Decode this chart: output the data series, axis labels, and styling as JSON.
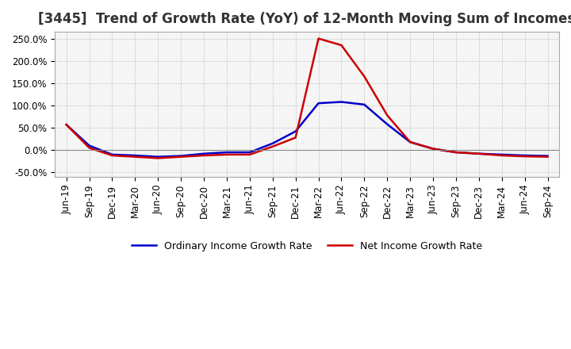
{
  "title": "[3445]  Trend of Growth Rate (YoY) of 12-Month Moving Sum of Incomes",
  "title_fontsize": 12,
  "background_color": "#ffffff",
  "plot_bg_color": "#f5f5f5",
  "grid_color": "#aaaaaa",
  "ylim": [
    -0.6,
    2.65
  ],
  "yticks": [
    -0.5,
    0.0,
    0.5,
    1.0,
    1.5,
    2.0,
    2.5
  ],
  "ytick_labels": [
    "-50.0%",
    "0.0%",
    "50.0%",
    "100.0%",
    "150.0%",
    "200.0%",
    "250.0%"
  ],
  "dates": [
    "Jun-19",
    "Sep-19",
    "Dec-19",
    "Mar-20",
    "Jun-20",
    "Sep-20",
    "Dec-20",
    "Mar-21",
    "Jun-21",
    "Sep-21",
    "Dec-21",
    "Mar-22",
    "Jun-22",
    "Sep-22",
    "Dec-22",
    "Mar-23",
    "Jun-23",
    "Sep-23",
    "Dec-23",
    "Mar-24",
    "Jun-24",
    "Sep-24"
  ],
  "ordinary_income": [
    0.57,
    0.1,
    -0.1,
    -0.12,
    -0.15,
    -0.13,
    -0.08,
    -0.05,
    -0.05,
    0.15,
    0.42,
    1.05,
    1.08,
    1.02,
    0.58,
    0.18,
    0.03,
    -0.05,
    -0.08,
    -0.1,
    -0.12,
    -0.13
  ],
  "net_income": [
    0.57,
    0.05,
    -0.12,
    -0.15,
    -0.18,
    -0.15,
    -0.12,
    -0.1,
    -0.1,
    0.08,
    0.28,
    2.5,
    2.35,
    1.65,
    0.78,
    0.18,
    0.03,
    -0.05,
    -0.08,
    -0.12,
    -0.14,
    -0.15
  ],
  "ordinary_color": "#0000cc",
  "net_color": "#cc0000",
  "line_width": 1.8,
  "legend_labels": [
    "Ordinary Income Growth Rate",
    "Net Income Growth Rate"
  ],
  "tick_fontsize": 8.5
}
